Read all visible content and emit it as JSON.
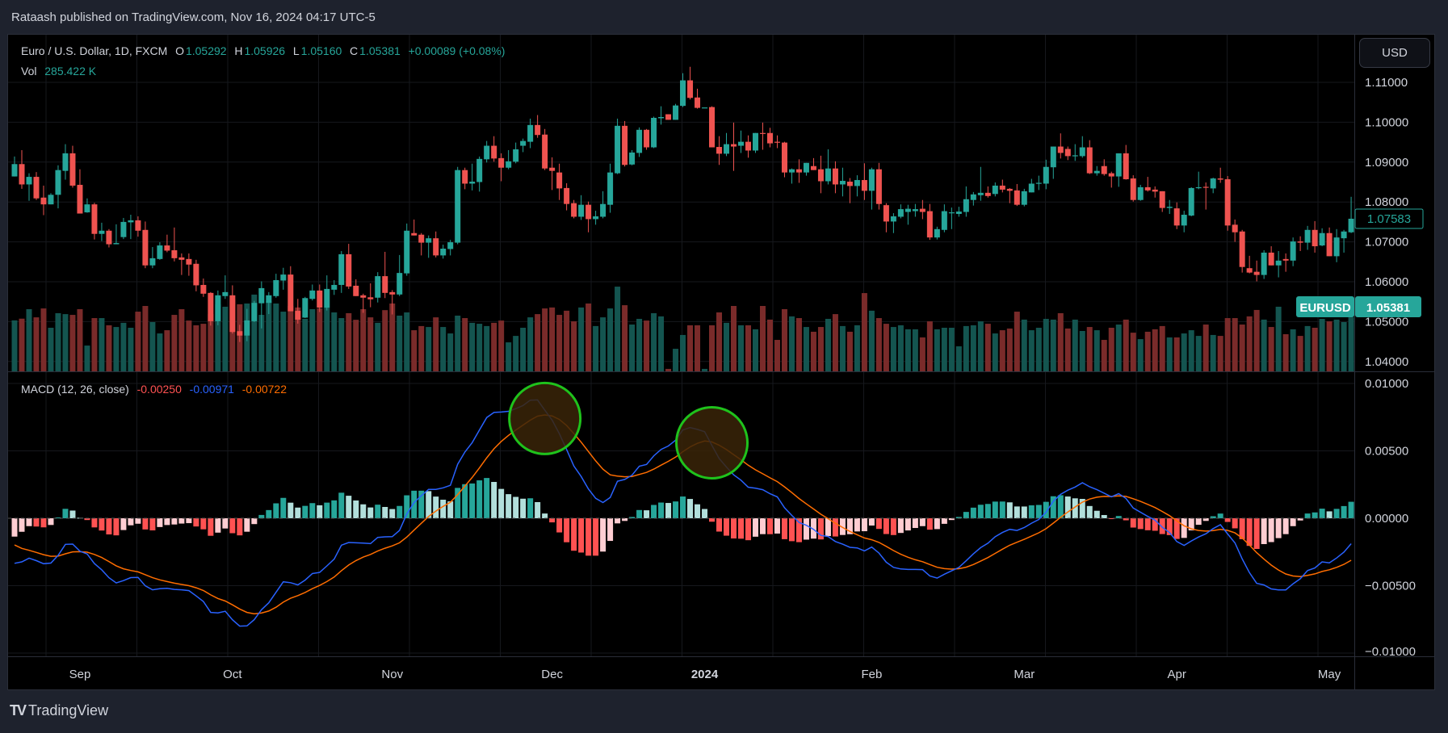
{
  "published": "Rataash published on TradingView.com, Nov 16, 2024 04:17 UTC-5",
  "legend": {
    "symbol": "Euro / U.S. Dollar, 1D, FXCM",
    "o_label": "O",
    "o": "1.05292",
    "h_label": "H",
    "h": "1.05926",
    "l_label": "L",
    "l": "1.05160",
    "c_label": "C",
    "c": "1.05381",
    "change": "+0.00089 (+0.08%)",
    "vol_label": "Vol",
    "vol": "285.422 K"
  },
  "macd_legend": {
    "title": "MACD (12, 26, close)",
    "hist": "-0.00250",
    "macd": "-0.00971",
    "signal": "-0.00722"
  },
  "currency_button": "USD",
  "footer_brand": "TradingView",
  "footer_logo": "TV",
  "chart_data": {
    "type": "candlestick",
    "symbol_tag": "EURUSD",
    "last_price_label": "1.05381",
    "visible_last_close_label": "1.07583",
    "price_axis": {
      "ticks": [
        "1.11000",
        "1.10000",
        "1.09000",
        "1.08000",
        "1.07000",
        "1.06000",
        "1.05000",
        "1.04000"
      ],
      "ylim": [
        1.0376,
        1.1187
      ]
    },
    "macd_axis": {
      "ticks": [
        "0.01000",
        "0.00500",
        "0.00000",
        "-0.00500",
        "-0.01000"
      ],
      "ylim": [
        -0.0101,
        0.0111
      ]
    },
    "time_labels": [
      {
        "label": "Sep",
        "bar": 9
      },
      {
        "label": "Oct",
        "bar": 30
      },
      {
        "label": "Nov",
        "bar": 52
      },
      {
        "label": "Dec",
        "bar": 74
      },
      {
        "label": "2024",
        "bar": 95
      },
      {
        "label": "Feb",
        "bar": 118
      },
      {
        "label": "Mar",
        "bar": 139
      },
      {
        "label": "Apr",
        "bar": 160
      },
      {
        "label": "May",
        "bar": 181
      }
    ],
    "colors": {
      "up": "#26a69a",
      "down": "#ef5350",
      "vol_up": "#145550",
      "vol_down": "#7a2b2a",
      "macd": "#2962ff",
      "signal": "#ff6d00",
      "hist_up_rising": "#26a69a",
      "hist_up_falling": "#b2dfdb",
      "hist_down_falling": "#ff5252",
      "hist_down_rising": "#ffcdd2",
      "circle": "#1fc21c",
      "circle_fill": "#3a2508"
    },
    "macd_params": {
      "fast": 12,
      "slow": 26,
      "source": "close"
    },
    "annotations": [
      {
        "type": "circle",
        "bar": 73,
        "value": 0.0074
      },
      {
        "type": "circle",
        "bar": 96,
        "value": 0.0056
      }
    ],
    "candles_fields": [
      "open",
      "high",
      "low",
      "close",
      "volume_k"
    ],
    "candles": [
      [
        1.0864,
        1.0914,
        1.0864,
        1.0895,
        269
      ],
      [
        1.0895,
        1.093,
        1.0833,
        1.0844,
        278
      ],
      [
        1.0844,
        1.0872,
        1.0803,
        1.0863,
        328
      ],
      [
        1.0863,
        1.0875,
        1.0805,
        1.0809,
        285
      ],
      [
        1.0811,
        1.0841,
        1.0767,
        1.0794,
        332
      ],
      [
        1.0794,
        1.0822,
        1.0794,
        1.0818,
        230
      ],
      [
        1.0818,
        1.0892,
        1.0784,
        1.088,
        307
      ],
      [
        1.0878,
        1.0945,
        1.0856,
        1.0922,
        302
      ],
      [
        1.0922,
        1.0941,
        1.0836,
        1.0841,
        298
      ],
      [
        1.0843,
        1.0882,
        1.0771,
        1.0771,
        328
      ],
      [
        1.0774,
        1.0809,
        1.0773,
        1.0794,
        136
      ],
      [
        1.0794,
        1.0798,
        1.0706,
        1.072,
        281
      ],
      [
        1.072,
        1.0748,
        1.0702,
        1.0728,
        281
      ],
      [
        1.0728,
        1.0732,
        1.0686,
        1.0694,
        243
      ],
      [
        1.0694,
        1.0744,
        1.0694,
        1.0697,
        234
      ],
      [
        1.0712,
        1.076,
        1.0707,
        1.075,
        256
      ],
      [
        1.0749,
        1.0768,
        1.0707,
        1.0754,
        230
      ],
      [
        1.0754,
        1.0764,
        1.0713,
        1.0728,
        315
      ],
      [
        1.073,
        1.0751,
        1.0634,
        1.0641,
        345
      ],
      [
        1.0641,
        1.0687,
        1.0634,
        1.0659,
        260
      ],
      [
        1.0657,
        1.0699,
        1.0655,
        1.0691,
        200
      ],
      [
        1.0691,
        1.0718,
        1.0674,
        1.0678,
        217
      ],
      [
        1.0679,
        1.0736,
        1.0651,
        1.0659,
        298
      ],
      [
        1.0661,
        1.0671,
        1.0617,
        1.0655,
        328
      ],
      [
        1.0657,
        1.0671,
        1.0615,
        1.0643,
        268
      ],
      [
        1.0645,
        1.0655,
        1.0576,
        1.0591,
        243
      ],
      [
        1.0592,
        1.0608,
        1.0562,
        1.057,
        251
      ],
      [
        1.0572,
        1.0574,
        1.049,
        1.0501,
        302
      ],
      [
        1.0501,
        1.0578,
        1.0491,
        1.0566,
        354
      ],
      [
        1.0564,
        1.0616,
        1.0557,
        1.0574,
        341
      ],
      [
        1.0566,
        1.0591,
        1.047,
        1.0474,
        379
      ],
      [
        1.0476,
        1.0492,
        1.0449,
        1.0465,
        354
      ],
      [
        1.0465,
        1.0532,
        1.0451,
        1.0503,
        358
      ],
      [
        1.0501,
        1.0552,
        1.0499,
        1.0547,
        405
      ],
      [
        1.0546,
        1.0601,
        1.0483,
        1.0584,
        298
      ],
      [
        1.0547,
        1.0574,
        1.0519,
        1.0566,
        371
      ],
      [
        1.0564,
        1.062,
        1.056,
        1.0604,
        358
      ],
      [
        1.0603,
        1.0635,
        1.058,
        1.0618,
        315
      ],
      [
        1.0618,
        1.0639,
        1.0526,
        1.0526,
        345
      ],
      [
        1.0527,
        1.0557,
        1.0495,
        1.0505,
        337
      ],
      [
        1.051,
        1.0562,
        1.0509,
        1.0559,
        277
      ],
      [
        1.0557,
        1.0593,
        1.0553,
        1.0578,
        328
      ],
      [
        1.0578,
        1.0593,
        1.0524,
        1.0535,
        332
      ],
      [
        1.0535,
        1.0616,
        1.0528,
        1.0582,
        337
      ],
      [
        1.058,
        1.0604,
        1.0567,
        1.0592,
        311
      ],
      [
        1.0592,
        1.0677,
        1.0572,
        1.0669,
        281
      ],
      [
        1.0669,
        1.0695,
        1.0582,
        1.0588,
        307
      ],
      [
        1.059,
        1.0606,
        1.0564,
        1.0564,
        272
      ],
      [
        1.0566,
        1.057,
        1.0522,
        1.056,
        328
      ],
      [
        1.0561,
        1.0596,
        1.0536,
        1.0556,
        285
      ],
      [
        1.056,
        1.0624,
        1.0548,
        1.0614,
        256
      ],
      [
        1.0614,
        1.0675,
        1.0559,
        1.0572,
        323
      ],
      [
        1.0574,
        1.0579,
        1.0518,
        1.0568,
        358
      ],
      [
        1.0568,
        1.0667,
        1.0564,
        1.0622,
        294
      ],
      [
        1.0621,
        1.0746,
        1.0615,
        1.0728,
        311
      ],
      [
        1.0722,
        1.0756,
        1.0716,
        1.0716,
        217
      ],
      [
        1.0718,
        1.0722,
        1.0666,
        1.0698,
        239
      ],
      [
        1.0698,
        1.0716,
        1.066,
        1.0709,
        234
      ],
      [
        1.0709,
        1.0726,
        1.0661,
        1.0666,
        285
      ],
      [
        1.0666,
        1.0693,
        1.0658,
        1.0683,
        234
      ],
      [
        1.0682,
        1.0705,
        1.0666,
        1.0699,
        200
      ],
      [
        1.0698,
        1.0888,
        1.0694,
        1.088,
        294
      ],
      [
        1.088,
        1.0886,
        1.0832,
        1.0846,
        281
      ],
      [
        1.0846,
        1.0896,
        1.0829,
        1.0851,
        256
      ],
      [
        1.085,
        1.0914,
        1.0826,
        1.0908,
        251
      ],
      [
        1.0907,
        1.0953,
        1.0899,
        1.0941,
        239
      ],
      [
        1.0941,
        1.0965,
        1.0901,
        1.0909,
        256
      ],
      [
        1.091,
        1.0922,
        1.0852,
        1.0886,
        268
      ],
      [
        1.0886,
        1.093,
        1.0882,
        1.0902,
        153
      ],
      [
        1.0901,
        1.0949,
        1.0897,
        1.0932,
        187
      ],
      [
        1.0941,
        1.0959,
        1.0925,
        1.0953,
        230
      ],
      [
        1.0951,
        1.1009,
        1.0935,
        1.0993,
        285
      ],
      [
        1.0993,
        1.1018,
        1.0961,
        1.0968,
        302
      ],
      [
        1.0969,
        1.0983,
        1.088,
        1.0884,
        332
      ],
      [
        1.0886,
        1.0912,
        1.083,
        1.0878,
        337
      ],
      [
        1.0874,
        1.0896,
        1.0805,
        1.0834,
        298
      ],
      [
        1.0835,
        1.0847,
        1.0779,
        1.0795,
        320
      ],
      [
        1.0797,
        1.0805,
        1.0759,
        1.0763,
        264
      ],
      [
        1.0763,
        1.0817,
        1.0755,
        1.0793,
        337
      ],
      [
        1.0793,
        1.0801,
        1.0724,
        1.0757,
        358
      ],
      [
        1.0757,
        1.0778,
        1.0743,
        1.0764,
        239
      ],
      [
        1.0763,
        1.0827,
        1.0759,
        1.0795,
        285
      ],
      [
        1.0793,
        1.0896,
        1.0773,
        1.0874,
        332
      ],
      [
        1.0872,
        1.1009,
        1.087,
        1.0991,
        447
      ],
      [
        1.0991,
        1.1003,
        1.0889,
        1.0893,
        349
      ],
      [
        1.0894,
        1.093,
        1.0892,
        1.0924,
        247
      ],
      [
        1.0923,
        1.0987,
        1.0913,
        1.0981,
        277
      ],
      [
        1.0981,
        1.0983,
        1.0931,
        1.0937,
        268
      ],
      [
        1.0937,
        1.1014,
        1.0935,
        1.1011,
        307
      ],
      [
        1.101,
        1.104,
        1.0994,
        1.1013,
        290
      ],
      [
        1.102,
        1.102,
        1.1006,
        1.1006,
        13
      ],
      [
        1.1006,
        1.1046,
        1.1006,
        1.1042,
        119
      ],
      [
        1.1041,
        1.1123,
        1.1038,
        1.1105,
        192
      ],
      [
        1.1105,
        1.1139,
        1.1057,
        1.1061,
        243
      ],
      [
        1.1062,
        1.1084,
        1.1034,
        1.1036,
        243
      ],
      [
        1.1037,
        1.1037,
        1.1037,
        1.1037,
        13
      ],
      [
        1.1038,
        1.104,
        1.0937,
        1.0937,
        243
      ],
      [
        1.0938,
        1.0965,
        1.0893,
        1.0921,
        311
      ],
      [
        1.0921,
        1.0973,
        1.0915,
        1.0945,
        256
      ],
      [
        1.0945,
        1.0999,
        1.0878,
        1.0939,
        345
      ],
      [
        1.0941,
        1.0979,
        1.0923,
        1.0951,
        243
      ],
      [
        1.0951,
        1.0967,
        1.0911,
        1.0929,
        243
      ],
      [
        1.0929,
        1.0973,
        1.0923,
        1.0973,
        222
      ],
      [
        1.0973,
        1.0999,
        1.0931,
        1.0971,
        345
      ],
      [
        1.0973,
        1.0986,
        1.0937,
        1.0947,
        273
      ],
      [
        1.0951,
        1.0967,
        1.0935,
        1.0949,
        166
      ],
      [
        1.0949,
        1.0951,
        1.0862,
        1.0874,
        328
      ],
      [
        1.0874,
        1.0884,
        1.0846,
        1.0882,
        290
      ],
      [
        1.0882,
        1.0907,
        1.0848,
        1.0874,
        281
      ],
      [
        1.0874,
        1.0898,
        1.0866,
        1.0898,
        234
      ],
      [
        1.089,
        1.091,
        1.088,
        1.088,
        209
      ],
      [
        1.0882,
        1.0916,
        1.0822,
        1.0852,
        234
      ],
      [
        1.0852,
        1.0932,
        1.0844,
        1.0884,
        277
      ],
      [
        1.0884,
        1.0902,
        1.0822,
        1.0844,
        302
      ],
      [
        1.0844,
        1.0886,
        1.0814,
        1.0853,
        239
      ],
      [
        1.0851,
        1.086,
        1.0797,
        1.084,
        209
      ],
      [
        1.084,
        1.0867,
        1.0814,
        1.0855,
        243
      ],
      [
        1.0855,
        1.0897,
        1.0805,
        1.0828,
        413
      ],
      [
        1.0828,
        1.0886,
        1.0781,
        1.0882,
        320
      ],
      [
        1.0882,
        1.0898,
        1.0781,
        1.0795,
        281
      ],
      [
        1.0792,
        1.0797,
        1.0724,
        1.0751,
        251
      ],
      [
        1.0751,
        1.0772,
        1.0722,
        1.0764,
        234
      ],
      [
        1.0763,
        1.0794,
        1.0759,
        1.0782,
        243
      ],
      [
        1.0775,
        1.0793,
        1.0743,
        1.0783,
        222
      ],
      [
        1.0777,
        1.0795,
        1.0763,
        1.0782,
        222
      ],
      [
        1.0783,
        1.0805,
        1.0757,
        1.0775,
        179
      ],
      [
        1.0777,
        1.0795,
        1.0705,
        1.0711,
        264
      ],
      [
        1.0711,
        1.0738,
        1.0706,
        1.0732,
        222
      ],
      [
        1.073,
        1.0794,
        1.0724,
        1.0777,
        230
      ],
      [
        1.0772,
        1.0786,
        1.0732,
        1.0774,
        230
      ],
      [
        1.077,
        1.0788,
        1.0763,
        1.0776,
        132
      ],
      [
        1.0775,
        1.0839,
        1.0763,
        1.0807,
        239
      ],
      [
        1.0805,
        1.0825,
        1.0791,
        1.0819,
        243
      ],
      [
        1.0817,
        1.0888,
        1.0803,
        1.0823,
        264
      ],
      [
        1.0823,
        1.0839,
        1.0811,
        1.0815,
        251
      ],
      [
        1.082,
        1.0849,
        1.0814,
        1.0841,
        200
      ],
      [
        1.0841,
        1.0856,
        1.0824,
        1.0831,
        217
      ],
      [
        1.0833,
        1.0835,
        1.0797,
        1.0828,
        226
      ],
      [
        1.0829,
        1.0845,
        1.079,
        1.0793,
        315
      ],
      [
        1.0793,
        1.0833,
        1.0789,
        1.0827,
        273
      ],
      [
        1.0824,
        1.0858,
        1.0824,
        1.0846,
        217
      ],
      [
        1.0846,
        1.0866,
        1.083,
        1.0848,
        230
      ],
      [
        1.0846,
        1.0906,
        1.0832,
        1.0888,
        277
      ],
      [
        1.0887,
        1.0939,
        1.0858,
        1.0939,
        273
      ],
      [
        1.0939,
        1.0972,
        1.0909,
        1.0923,
        307
      ],
      [
        1.0933,
        1.0939,
        1.0905,
        1.0915,
        226
      ],
      [
        1.0915,
        1.0945,
        1.0903,
        1.0917,
        273
      ],
      [
        1.0915,
        1.0965,
        1.0911,
        1.0937,
        213
      ],
      [
        1.0937,
        1.0955,
        1.087,
        1.0872,
        234
      ],
      [
        1.0872,
        1.089,
        1.0866,
        1.0878,
        217
      ],
      [
        1.089,
        1.0907,
        1.0866,
        1.087,
        166
      ],
      [
        1.0872,
        1.0876,
        1.0836,
        1.0864,
        230
      ],
      [
        1.0864,
        1.0922,
        1.0838,
        1.0922,
        247
      ],
      [
        1.0922,
        1.0943,
        1.0856,
        1.0857,
        273
      ],
      [
        1.0859,
        1.0867,
        1.0801,
        1.0805,
        204
      ],
      [
        1.0805,
        1.0843,
        1.0803,
        1.0837,
        170
      ],
      [
        1.0837,
        1.0863,
        1.0826,
        1.0829,
        209
      ],
      [
        1.0831,
        1.0839,
        1.0811,
        1.0826,
        222
      ],
      [
        1.0827,
        1.0827,
        1.0775,
        1.0785,
        239
      ],
      [
        1.0785,
        1.0805,
        1.077,
        1.0788,
        179
      ],
      [
        1.0784,
        1.0799,
        1.0732,
        1.0741,
        179
      ],
      [
        1.0741,
        1.0778,
        1.0724,
        1.0768,
        200
      ],
      [
        1.0766,
        1.0837,
        1.0764,
        1.0835,
        217
      ],
      [
        1.0835,
        1.0876,
        1.0832,
        1.0837,
        187
      ],
      [
        1.0838,
        1.0849,
        1.0781,
        1.0836,
        247
      ],
      [
        1.0834,
        1.0861,
        1.0822,
        1.0859,
        192
      ],
      [
        1.0859,
        1.0886,
        1.0848,
        1.0856,
        187
      ],
      [
        1.0857,
        1.0865,
        1.0728,
        1.0741,
        281
      ],
      [
        1.0743,
        1.0756,
        1.07,
        1.0724,
        281
      ],
      [
        1.0726,
        1.073,
        1.0623,
        1.0637,
        247
      ],
      [
        1.0634,
        1.0665,
        1.0621,
        1.0623,
        290
      ],
      [
        1.0625,
        1.0653,
        1.0601,
        1.0617,
        324
      ],
      [
        1.0617,
        1.0679,
        1.0607,
        1.0673,
        273
      ],
      [
        1.0673,
        1.0689,
        1.0641,
        1.0641,
        234
      ],
      [
        1.0641,
        1.0677,
        1.0611,
        1.0653,
        341
      ],
      [
        1.0657,
        1.0671,
        1.0625,
        1.0653,
        196
      ],
      [
        1.0653,
        1.0711,
        1.0639,
        1.0701,
        222
      ],
      [
        1.0701,
        1.0714,
        1.0677,
        1.0698,
        187
      ],
      [
        1.0698,
        1.074,
        1.068,
        1.073,
        239
      ],
      [
        1.073,
        1.0752,
        1.0673,
        1.0689,
        230
      ],
      [
        1.0691,
        1.0734,
        1.0689,
        1.0722,
        277
      ],
      [
        1.0722,
        1.0736,
        1.0664,
        1.0664,
        264
      ],
      [
        1.0664,
        1.0732,
        1.0649,
        1.0711,
        273
      ],
      [
        1.0709,
        1.073,
        1.0673,
        1.0726,
        260
      ],
      [
        1.0724,
        1.0813,
        1.0722,
        1.0758,
        285
      ]
    ]
  }
}
